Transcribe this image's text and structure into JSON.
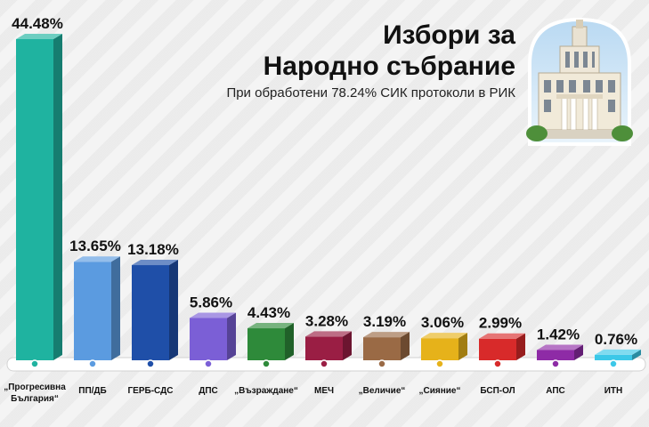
{
  "header": {
    "title_line1": "Избори за",
    "title_line2": "Народно събрание",
    "subtitle": "При обработени 78.24% СИК протоколи в РИК"
  },
  "chart_data": {
    "type": "bar",
    "categories": [
      "„Прогресивна България“",
      "ПП/ДБ",
      "ГЕРБ-СДС",
      "ДПС",
      "„Възраждане“",
      "МЕЧ",
      "„Величие“",
      "„Сияние“",
      "БСП-ОЛ",
      "АПС",
      "ИТН"
    ],
    "values": [
      44.48,
      13.65,
      13.18,
      5.86,
      4.43,
      3.28,
      3.19,
      3.06,
      2.99,
      1.42,
      0.76
    ],
    "value_labels": [
      "44.48%",
      "13.65%",
      "13.18%",
      "5.86%",
      "4.43%",
      "3.28%",
      "3.19%",
      "3.06%",
      "2.99%",
      "1.42%",
      "0.76%"
    ],
    "colors": [
      "#1fb3a0",
      "#5b9be0",
      "#1f4fa8",
      "#7b5fd6",
      "#2e8a3a",
      "#9a1e44",
      "#9a6a45",
      "#e6b21a",
      "#d82a2a",
      "#8e2ba6",
      "#3cc8e8"
    ],
    "ylim": [
      0,
      44.48
    ],
    "grid": false
  },
  "icons": {
    "building": "parliament-building-icon"
  }
}
